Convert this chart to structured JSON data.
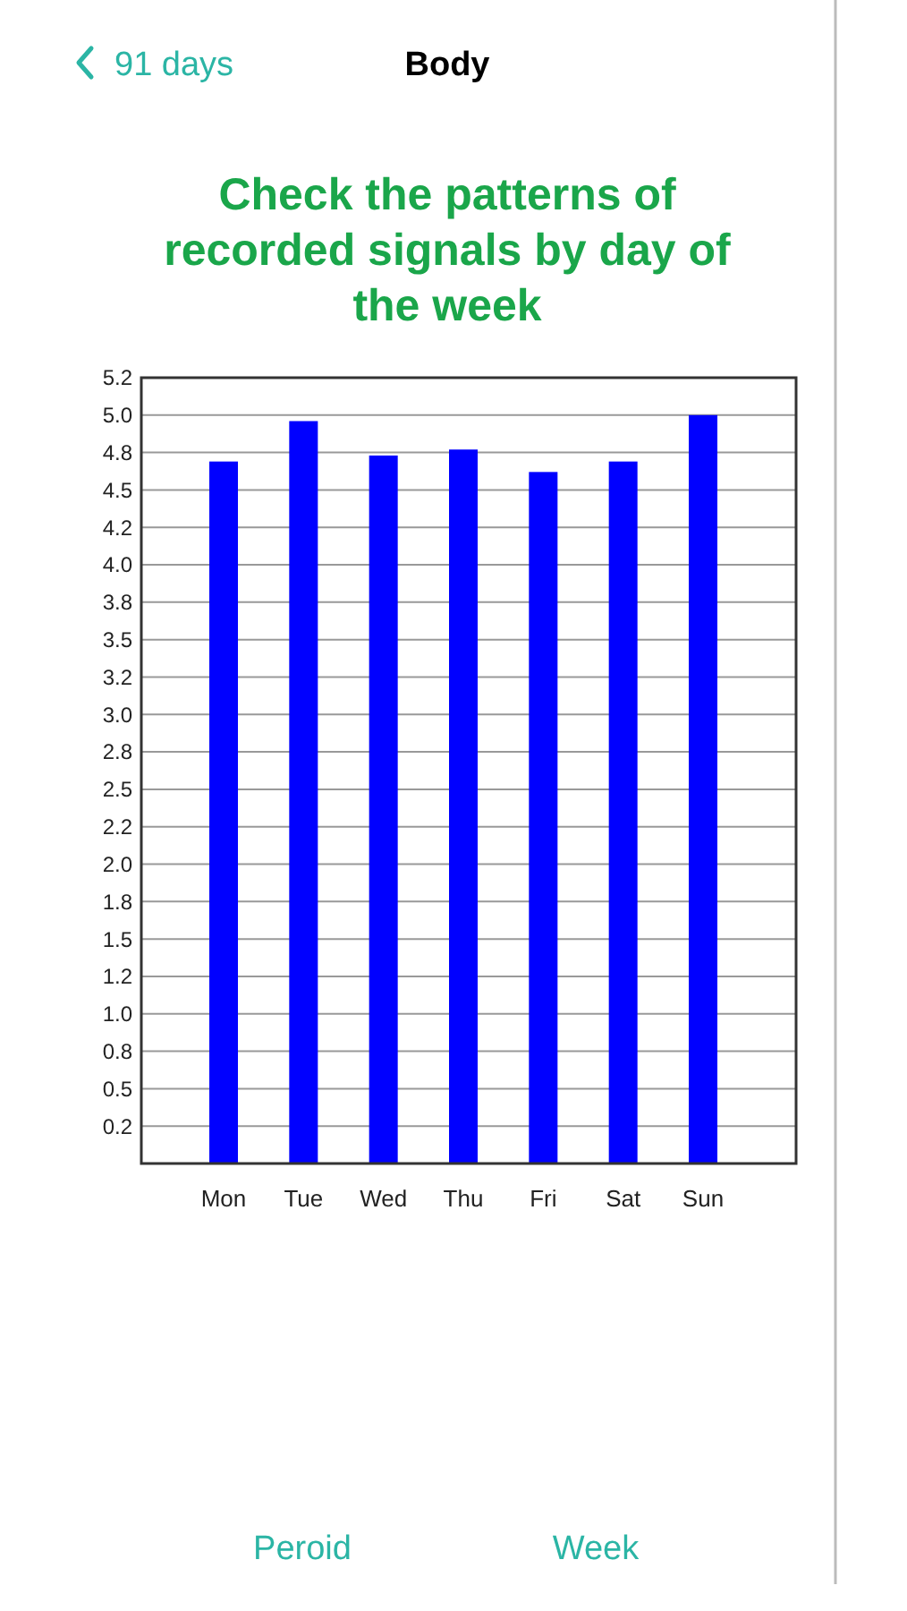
{
  "chart_data": {
    "type": "bar",
    "title": "Check the patterns of recorded signals by day of the week",
    "categories": [
      "Mon",
      "Tue",
      "Wed",
      "Thu",
      "Fri",
      "Sat",
      "Sun"
    ],
    "values": [
      4.69,
      4.96,
      4.73,
      4.77,
      4.62,
      4.69,
      5.0
    ],
    "color": "#0000ff",
    "ylim": [
      0,
      5.25
    ],
    "yticks": [
      {
        "value": 0.25,
        "label": "0.2"
      },
      0.5,
      {
        "value": 0.75,
        "label": "0.8"
      },
      {
        "value": 1,
        "label": "1.0"
      },
      {
        "value": 1.25,
        "label": "1.2"
      },
      1.5,
      {
        "value": 1.75,
        "label": "1.8"
      },
      {
        "value": 2,
        "label": "2.0"
      },
      {
        "value": 2.25,
        "label": "2.2"
      },
      2.5,
      {
        "value": 2.75,
        "label": "2.8"
      },
      {
        "value": 3,
        "label": "3.0"
      },
      {
        "value": 3.25,
        "label": "3.2"
      },
      3.5,
      {
        "value": 3.75,
        "label": "3.8"
      },
      {
        "value": 4,
        "label": "4.0"
      },
      {
        "value": 4.25,
        "label": "4.2"
      },
      4.5,
      {
        "value": 4.75,
        "label": "4.8"
      },
      {
        "value": 5,
        "label": "5.0"
      },
      {
        "value": 5.25,
        "label": "5.2"
      }
    ],
    "grid": "y",
    "annotations": [
      "91 days",
      "Body",
      "Peroid",
      "Week"
    ]
  }
}
